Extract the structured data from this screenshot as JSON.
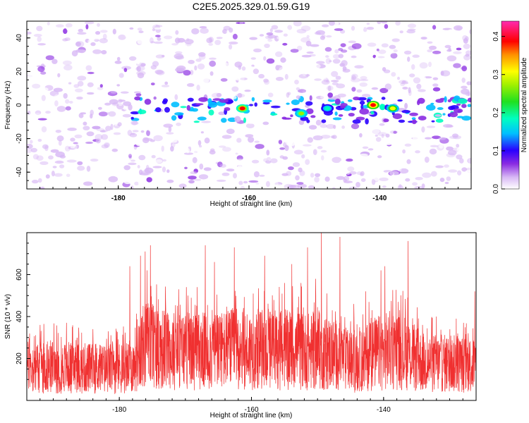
{
  "title": "C2E5.2025.329.01.59.G19",
  "colors": {
    "snr_line": "#f03030",
    "frame": "#000000"
  },
  "chart_data": [
    {
      "type": "heatmap",
      "xlabel": "Height of straight line (km)",
      "ylabel": "Frequency (Hz)",
      "xlim": [
        -194,
        -126
      ],
      "ylim": [
        -50,
        50
      ],
      "xticks": [
        -180,
        -160,
        -140
      ],
      "yticks": [
        -40,
        -20,
        0,
        20,
        40
      ],
      "colorbar": {
        "label": "Normalized spectral amplitude",
        "range": [
          0.0,
          0.44
        ],
        "ticks": [
          0.0,
          0.1,
          0.2,
          0.3,
          0.4
        ]
      },
      "features": [
        {
          "x_range": [
            -178,
            -126
          ],
          "y_center": -3,
          "y_halfwidth": 7,
          "description": "band of high amplitude"
        },
        {
          "x": -161,
          "y": -2,
          "value": 0.4
        },
        {
          "x": -141,
          "y": 0,
          "value": 0.42
        },
        {
          "x": -152,
          "y": -5,
          "value": 0.28
        },
        {
          "x": -138,
          "y": -2,
          "value": 0.32
        },
        {
          "x": -148,
          "y": -2,
          "value": 0.22
        }
      ]
    },
    {
      "type": "line",
      "xlabel": "Height of straight line (km)",
      "ylabel": "SNR (10 * v/v)",
      "xlim": [
        -194,
        -126
      ],
      "ylim": [
        0,
        800
      ],
      "xticks": [
        -180,
        -160,
        -140
      ],
      "yticks": [
        200,
        400,
        600
      ],
      "series": [
        {
          "name": "SNR",
          "x": [
            -194,
            -190,
            -186,
            -182,
            -178,
            -177,
            -176,
            -175,
            -174,
            -172,
            -170,
            -168,
            -166,
            -164,
            -162,
            -160,
            -158,
            -156,
            -154,
            -152,
            -150,
            -148,
            -146,
            -144,
            -142,
            -140,
            -139,
            -137,
            -134,
            -130,
            -126
          ],
          "baseline": [
            160,
            160,
            155,
            150,
            160,
            250,
            260,
            270,
            250,
            240,
            240,
            235,
            240,
            240,
            250,
            240,
            245,
            240,
            240,
            235,
            230,
            225,
            200,
            175,
            220,
            230,
            240,
            230,
            180,
            175,
            170
          ],
          "peaks": [
            {
              "x": -192,
              "y": 360
            },
            {
              "x": -188,
              "y": 370
            },
            {
              "x": -184,
              "y": 340
            },
            {
              "x": -178.4,
              "y": 640
            },
            {
              "x": -176.8,
              "y": 690
            },
            {
              "x": -176.1,
              "y": 710
            },
            {
              "x": -175.3,
              "y": 740
            },
            {
              "x": -175.8,
              "y": 620
            },
            {
              "x": -173,
              "y": 480
            },
            {
              "x": -171,
              "y": 530
            },
            {
              "x": -167,
              "y": 740
            },
            {
              "x": -165.6,
              "y": 660
            },
            {
              "x": -162.6,
              "y": 730
            },
            {
              "x": -158,
              "y": 690
            },
            {
              "x": -155,
              "y": 560
            },
            {
              "x": -153.9,
              "y": 650
            },
            {
              "x": -152.5,
              "y": 560
            },
            {
              "x": -151.5,
              "y": 730
            },
            {
              "x": -150.3,
              "y": 580
            },
            {
              "x": -149.4,
              "y": 830
            },
            {
              "x": -146.6,
              "y": 780
            },
            {
              "x": -144.5,
              "y": 460
            },
            {
              "x": -142.7,
              "y": 520
            },
            {
              "x": -140.4,
              "y": 620
            },
            {
              "x": -139.8,
              "y": 640
            },
            {
              "x": -137.8,
              "y": 470
            },
            {
              "x": -136.3,
              "y": 760
            },
            {
              "x": -132,
              "y": 400
            },
            {
              "x": -129,
              "y": 390
            },
            {
              "x": -126.2,
              "y": 520
            }
          ]
        }
      ]
    }
  ]
}
